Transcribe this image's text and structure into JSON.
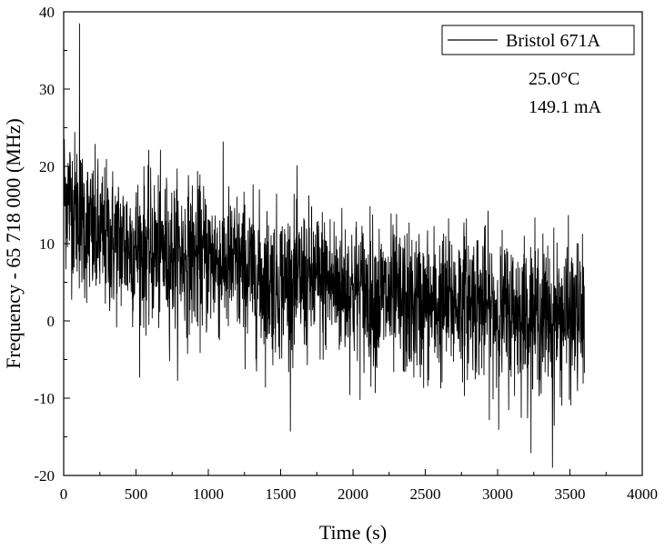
{
  "chart_data": {
    "type": "line",
    "title": "",
    "xlabel": "Time (s)",
    "ylabel": "Frequency - 65 718 000 (MHz)",
    "xlim": [
      0,
      4000
    ],
    "ylim": [
      -20,
      40
    ],
    "xticks": [
      0,
      500,
      1000,
      1500,
      2000,
      2500,
      3000,
      3500,
      4000
    ],
    "yticks": [
      -20,
      -10,
      0,
      10,
      20,
      30,
      40
    ],
    "grid": false,
    "legend_position": "top-right",
    "series": [
      {
        "name": "Bristol 671A",
        "color": "#000000",
        "x_range": [
          0,
          3600
        ],
        "trend": {
          "x": [
            0,
            200,
            400,
            600,
            800,
            1000,
            1200,
            1400,
            1600,
            1800,
            2000,
            2200,
            2400,
            2600,
            2800,
            3000,
            3200,
            3400,
            3600
          ],
          "y": [
            17,
            11,
            10,
            9,
            8.5,
            8,
            7,
            5,
            5,
            5,
            4,
            3,
            2,
            2,
            3,
            1,
            1,
            0.5,
            0.5
          ]
        },
        "noise_amplitude": 6,
        "extremes": {
          "max": {
            "x": 110,
            "y": 38.5
          },
          "min": {
            "x": 3380,
            "y": -19
          }
        }
      }
    ],
    "annotations": [
      "25.0°C",
      "149.1 mA"
    ]
  }
}
